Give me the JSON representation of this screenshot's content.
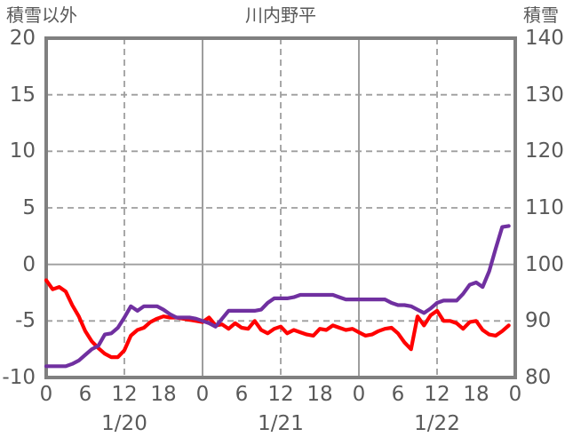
{
  "chart_data": {
    "type": "line",
    "title": "川内野平",
    "grid": {
      "h_dashed": true,
      "v_dashed_noon": true,
      "solid_zero_line": true,
      "legend": "none"
    },
    "colors": {
      "red_line": "#FF0000",
      "purple_line": "#7030A0",
      "border": "#808080",
      "gridline": "#9e9e9e",
      "text": "#595959"
    },
    "left_axis": {
      "label": "積雪以外",
      "min": -10,
      "max": 20,
      "ticks": [
        20,
        15,
        10,
        5,
        0,
        -5,
        -10
      ]
    },
    "right_axis": {
      "label": "積雪",
      "min": 80,
      "max": 140,
      "ticks": [
        140,
        130,
        120,
        110,
        100,
        90,
        80
      ]
    },
    "x_axis": {
      "hours_total": 72,
      "tick_step_hours": 6,
      "hour_ticks": [
        "0",
        "6",
        "12",
        "18",
        "0",
        "6",
        "12",
        "18",
        "0",
        "6",
        "12",
        "18",
        "0"
      ],
      "date_labels": [
        "1/20",
        "1/21",
        "1/22"
      ],
      "date_label_hours": [
        12,
        36,
        60
      ],
      "gridline_hours_dashed": [
        12,
        36,
        60
      ],
      "gridline_hours_solid": [
        24,
        48
      ]
    },
    "series": [
      {
        "name": "積雪以外",
        "color": "#FF0000",
        "axis": "left",
        "values": [
          -1.4,
          -2.2,
          -2.0,
          -2.4,
          -3.6,
          -4.6,
          -5.9,
          -6.8,
          -7.4,
          -7.9,
          -8.2,
          -8.2,
          -7.6,
          -6.3,
          -5.8,
          -5.6,
          -5.1,
          -4.8,
          -4.6,
          -4.7,
          -4.7,
          -4.8,
          -4.9,
          -5.0,
          -5.1,
          -4.7,
          -5.4,
          -5.3,
          -5.7,
          -5.2,
          -5.6,
          -5.7,
          -5.0,
          -5.8,
          -6.1,
          -5.7,
          -5.5,
          -6.1,
          -5.8,
          -6.0,
          -6.2,
          -6.3,
          -5.7,
          -5.8,
          -5.4,
          -5.6,
          -5.8,
          -5.7,
          -6.0,
          -6.3,
          -6.2,
          -5.9,
          -5.7,
          -5.6,
          -6.1,
          -6.9,
          -7.5,
          -4.6,
          -5.4,
          -4.5,
          -4.1,
          -5.0,
          -5.0,
          -5.2,
          -5.7,
          -5.1,
          -5.0,
          -5.8,
          -6.2,
          -6.3,
          -5.9,
          -5.4
        ]
      },
      {
        "name": "積雪",
        "color": "#7030A0",
        "axis": "right",
        "values": [
          82,
          82,
          82,
          82,
          82.4,
          83,
          84,
          85,
          85.6,
          87.6,
          87.8,
          88.8,
          90.6,
          92.6,
          91.8,
          92.6,
          92.6,
          92.6,
          92,
          91.2,
          90.6,
          90.6,
          90.6,
          90.4,
          90,
          89.6,
          89,
          90.4,
          91.8,
          91.8,
          91.8,
          91.8,
          91.8,
          92,
          93.2,
          94,
          94,
          94,
          94.2,
          94.6,
          94.6,
          94.6,
          94.6,
          94.6,
          94.6,
          94.2,
          93.8,
          93.8,
          93.8,
          93.8,
          93.8,
          93.8,
          93.8,
          93.2,
          92.8,
          92.8,
          92.6,
          92,
          91.4,
          92.2,
          93.2,
          93.6,
          93.6,
          93.6,
          94.8,
          96.4,
          96.8,
          96,
          98.8,
          102.8,
          106.6,
          106.8
        ]
      }
    ]
  }
}
